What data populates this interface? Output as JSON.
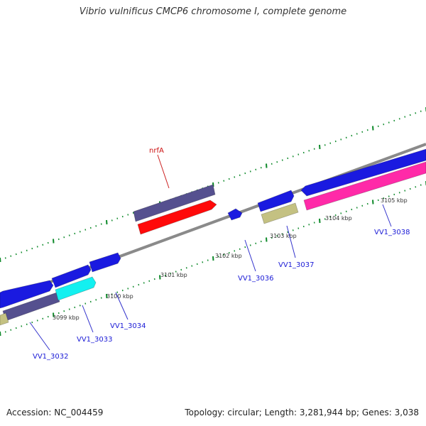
{
  "title": "Vibrio vulnificus CMCP6 chromosome I, complete genome",
  "footer": {
    "accession_label": "Accession: NC_004459",
    "summary": "Topology: circular; Length: 3,281,944 bp; Genes: 3,038"
  },
  "colors": {
    "backbone": "#8a8a8a",
    "cds": "#1a1ae0",
    "slate": "#55508f",
    "cyan": "#13f0f0",
    "red": "#ff0a0a",
    "khaki": "#c4c182",
    "pink": "#ff2aa8",
    "tick": "#0e8a2a",
    "gene_label": "#1a1ad6",
    "rna_label": "#cc1111"
  },
  "kbp_labels": [
    "3099 kbp",
    "3100 kbp",
    "3101 kbp",
    "3102 kbp",
    "3103 kbp",
    "3104 kbp",
    "3105 kbp"
  ],
  "gene_labels": [
    {
      "text": "VV1_3032"
    },
    {
      "text": "VV1_3033"
    },
    {
      "text": "VV1_3034"
    },
    {
      "text": "VV1_3036"
    },
    {
      "text": "VV1_3037"
    },
    {
      "text": "VV1_3038"
    },
    {
      "text": "nrfA",
      "rna": true
    }
  ]
}
